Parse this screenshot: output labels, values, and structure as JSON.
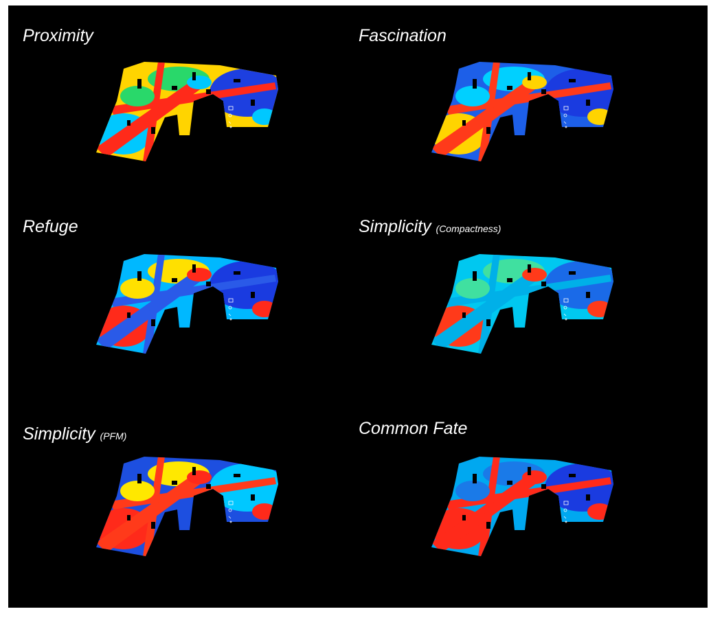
{
  "panels": [
    {
      "title": "Proximity"
    },
    {
      "title": "Fascination"
    },
    {
      "title": "Refuge"
    },
    {
      "title": "Simplicity",
      "subtitle": "(Compactness)"
    },
    {
      "title": "Simplicity",
      "subtitle": "(PFM)"
    },
    {
      "title": "Common Fate"
    }
  ]
}
